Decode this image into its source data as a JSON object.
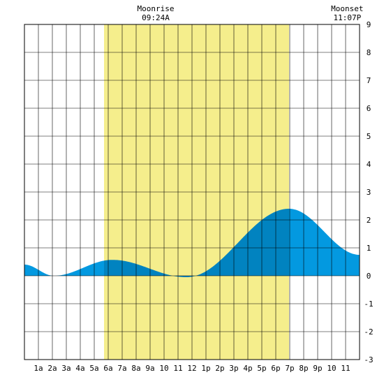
{
  "chart_data": {
    "type": "area",
    "title": "",
    "xlabel": "",
    "ylabel": "",
    "x_range_hours": [
      0,
      24
    ],
    "ylim": [
      -3,
      9
    ],
    "y_ticks": [
      -3,
      -2,
      -1,
      0,
      1,
      2,
      3,
      4,
      5,
      6,
      7,
      8,
      9
    ],
    "y_axis_side": "right",
    "x_tick_labels": [
      {
        "hour": 1,
        "label": "1a"
      },
      {
        "hour": 2,
        "label": "2a"
      },
      {
        "hour": 3,
        "label": "3a"
      },
      {
        "hour": 4,
        "label": "4a"
      },
      {
        "hour": 5,
        "label": "5a"
      },
      {
        "hour": 6,
        "label": "6a"
      },
      {
        "hour": 7,
        "label": "7a"
      },
      {
        "hour": 8,
        "label": "8a"
      },
      {
        "hour": 9,
        "label": "9a"
      },
      {
        "hour": 10,
        "label": "10"
      },
      {
        "hour": 11,
        "label": "11"
      },
      {
        "hour": 12,
        "label": "12"
      },
      {
        "hour": 13,
        "label": "1p"
      },
      {
        "hour": 14,
        "label": "2p"
      },
      {
        "hour": 15,
        "label": "3p"
      },
      {
        "hour": 16,
        "label": "4p"
      },
      {
        "hour": 17,
        "label": "5p"
      },
      {
        "hour": 18,
        "label": "6p"
      },
      {
        "hour": 19,
        "label": "7p"
      },
      {
        "hour": 20,
        "label": "8p"
      },
      {
        "hour": 21,
        "label": "9p"
      },
      {
        "hour": 22,
        "label": "10"
      },
      {
        "hour": 23,
        "label": "11"
      }
    ],
    "grid": true,
    "daylight": {
      "start_hour": 5.7,
      "end_hour": 18.95,
      "color": "#f5ee8c"
    },
    "tide_extremes": [
      {
        "hour": 0.0,
        "height": 0.4
      },
      {
        "hour": 2.1,
        "height": 0.0
      },
      {
        "hour": 6.3,
        "height": 0.57
      },
      {
        "hour": 11.6,
        "height": -0.05
      },
      {
        "hour": 18.95,
        "height": 2.4
      },
      {
        "hour": 24.0,
        "height": 0.75
      }
    ],
    "tide_colors": {
      "night": "#0399e0",
      "day": "#0183c0"
    },
    "moon_events": [
      {
        "label": "Moonrise",
        "time": "09:24A",
        "hour": 9.4
      },
      {
        "label": "Moonset",
        "time": "11:07P",
        "hour": 23.117
      }
    ]
  }
}
